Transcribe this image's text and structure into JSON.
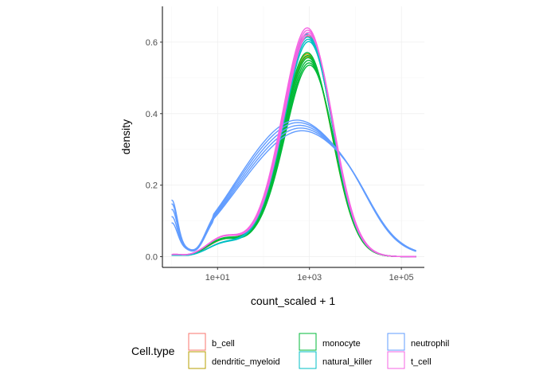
{
  "chart_data": {
    "type": "line",
    "subtype": "density",
    "title": "",
    "xlabel": "count_scaled + 1",
    "ylabel": "density",
    "x_scale": "log10",
    "xlim_log10": [
      -0.2,
      5.5
    ],
    "ylim": [
      -0.03,
      0.7
    ],
    "x_ticks": [
      {
        "log10": 1,
        "label": "1e+01"
      },
      {
        "log10": 3,
        "label": "1e+03"
      },
      {
        "log10": 5,
        "label": "1e+05"
      }
    ],
    "y_ticks": [
      {
        "value": 0.0,
        "label": "0.0"
      },
      {
        "value": 0.2,
        "label": "0.2"
      },
      {
        "value": 0.4,
        "label": "0.4"
      },
      {
        "value": 0.6,
        "label": "0.6"
      }
    ],
    "grid": true,
    "legend": {
      "title": "Cell.type",
      "position": "bottom",
      "entries": [
        {
          "label": "b_cell",
          "color": "#F8766D"
        },
        {
          "label": "dendritic_myeloid",
          "color": "#B79F00"
        },
        {
          "label": "monocyte",
          "color": "#00BA38"
        },
        {
          "label": "natural_killer",
          "color": "#00BFC4"
        },
        {
          "label": "neutrophil",
          "color": "#619CFF"
        },
        {
          "label": "t_cell",
          "color": "#F564E3"
        }
      ]
    },
    "series": [
      {
        "name": "b_cell",
        "color": "#F8766D",
        "peaks": [
          0.65,
          0.645
        ],
        "low": 0.004,
        "shoulder": 0.01
      },
      {
        "name": "dendritic_myeloid",
        "color": "#B79F00",
        "peaks": [
          0.592,
          0.585
        ],
        "low": 0.004,
        "shoulder": 0.012
      },
      {
        "name": "monocyte",
        "color": "#00BA38",
        "peaks": [
          0.596,
          0.588,
          0.582,
          0.575,
          0.568,
          0.562
        ],
        "low": 0.004,
        "shoulder": 0.012
      },
      {
        "name": "natural_killer",
        "color": "#00BFC4",
        "peaks": [
          0.65,
          0.642,
          0.636,
          0.63
        ],
        "low": 0.004,
        "shoulder": 0.008
      },
      {
        "name": "neutrophil",
        "color": "#619CFF",
        "peaks": [
          0.355,
          0.35,
          0.344,
          0.338,
          0.332
        ],
        "low": [
          0.14,
          0.13,
          0.115,
          0.095,
          0.078
        ],
        "shoulder": 0.0
      },
      {
        "name": "t_cell",
        "color": "#F564E3",
        "peaks": [
          0.668,
          0.662,
          0.656,
          0.65
        ],
        "low": 0.006,
        "shoulder": 0.012
      }
    ]
  }
}
